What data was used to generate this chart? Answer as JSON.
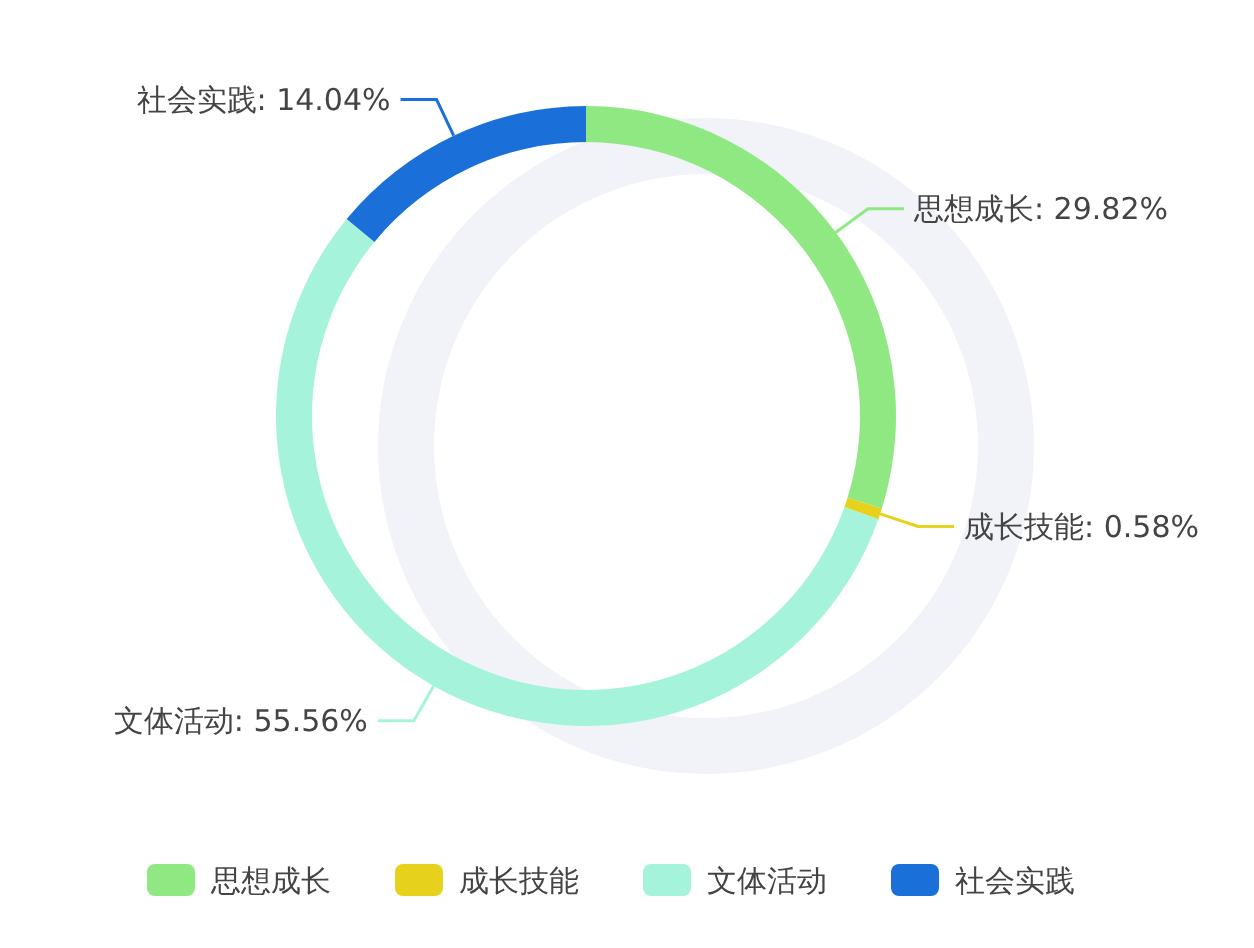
{
  "chart_data": {
    "type": "donut",
    "categories": [
      "思想成长",
      "成长技能",
      "文体活动",
      "社会实践"
    ],
    "values": [
      29.82,
      0.58,
      55.56,
      14.04
    ],
    "value_labels": [
      "思想成长: 29.82%",
      "成长技能: 0.58%",
      "文体活动: 55.56%",
      "社会实践: 14.04%"
    ],
    "colors": [
      "#8fe882",
      "#e6d21c",
      "#a6f3dc",
      "#1a6fd8"
    ],
    "legend": "bottom"
  }
}
